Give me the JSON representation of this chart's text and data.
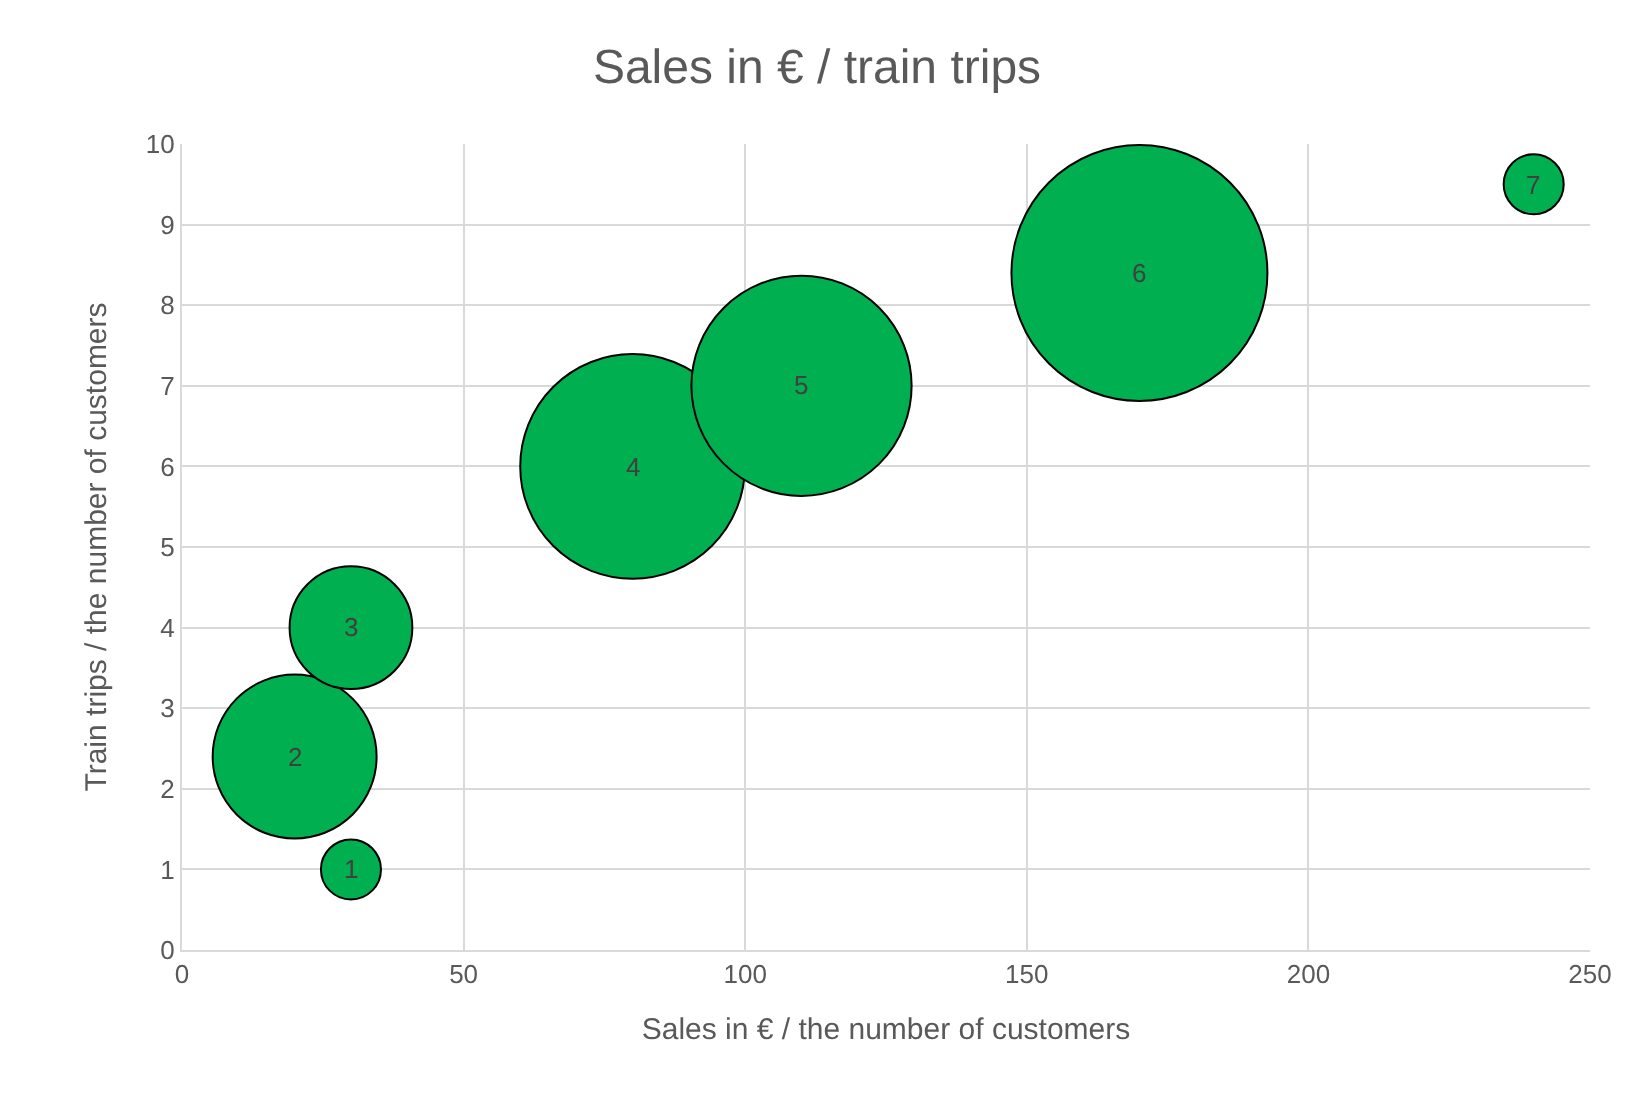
{
  "chart_data": {
    "type": "bubble",
    "title": "Sales in € / train trips",
    "xlabel": "Sales in € / the number of customers",
    "ylabel": "Train trips / the number of customers",
    "x": [
      30,
      20,
      30,
      80,
      110,
      170,
      240
    ],
    "values": [
      1,
      2.4,
      4,
      6,
      7,
      8.4,
      9.5
    ],
    "sizes": [
      0.055,
      0.41,
      0.23,
      0.77,
      0.74,
      1,
      0.055
    ],
    "annotations": [
      {
        "text": "1",
        "x": 30,
        "y": 1
      },
      {
        "text": "2",
        "x": 20,
        "y": 2.4
      },
      {
        "text": "3",
        "x": 30,
        "y": 4
      },
      {
        "text": "4",
        "x": 80,
        "y": 6
      },
      {
        "text": "5",
        "x": 110,
        "y": 7
      },
      {
        "text": "6",
        "x": 170,
        "y": 8.4
      },
      {
        "text": "7",
        "x": 240,
        "y": 9.5
      }
    ],
    "color": "#00b050",
    "xlim": [
      0,
      250
    ],
    "xticks": [
      0,
      50,
      100,
      150,
      200,
      250
    ],
    "ylim": [
      0,
      10
    ],
    "yticks": [
      0,
      1,
      2,
      3,
      4,
      5,
      6,
      7,
      8,
      9,
      10
    ],
    "grid": true
  }
}
